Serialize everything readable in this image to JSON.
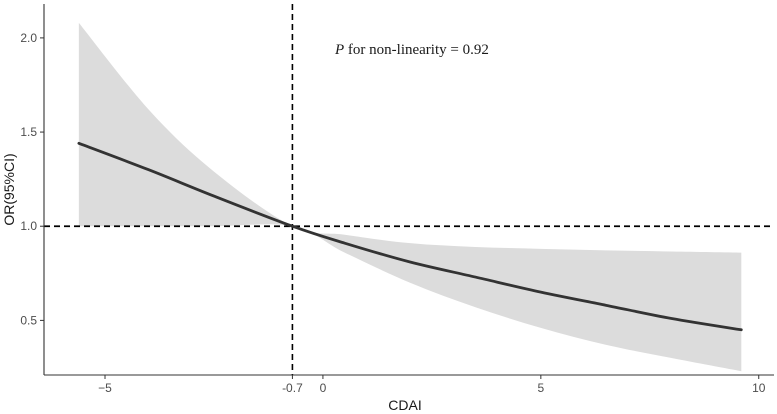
{
  "chart_data": {
    "type": "line",
    "title": "",
    "xlabel": "CDAI",
    "ylabel": "OR(95%CI)",
    "xlim": [
      -6.4,
      10.35
    ],
    "ylim": [
      0.21,
      2.18
    ],
    "x_ticks": [
      -5,
      -0.7,
      0,
      5,
      10
    ],
    "x_tick_labels": [
      "−5",
      "-0.7",
      "0",
      "5",
      "10"
    ],
    "y_ticks": [
      0.5,
      1.0,
      1.5,
      2.0
    ],
    "y_tick_labels": [
      "0.5",
      "1.0",
      "1.5",
      "2.0"
    ],
    "grid": false,
    "reference_lines": [
      {
        "orientation": "horizontal",
        "value": 1.0,
        "style": "dashed"
      },
      {
        "orientation": "vertical",
        "value": -0.7,
        "style": "dashed"
      }
    ],
    "annotation": {
      "italic": "P",
      "text": " for non-linearity = 0.92"
    },
    "series": [
      {
        "name": "OR",
        "x": [
          -5.6,
          -4,
          -2.5,
          -0.7,
          0.5,
          2,
          3.5,
          5,
          6.5,
          8,
          9.6
        ],
        "y": [
          1.44,
          1.3,
          1.16,
          1.0,
          0.91,
          0.81,
          0.73,
          0.65,
          0.58,
          0.51,
          0.45
        ]
      },
      {
        "name": "95% CI upper",
        "x": [
          -5.6,
          -4,
          -2.5,
          -0.7,
          0.5,
          2,
          3.5,
          5,
          6.5,
          8,
          9.6
        ],
        "y": [
          2.08,
          1.62,
          1.29,
          1.0,
          0.955,
          0.91,
          0.89,
          0.88,
          0.872,
          0.866,
          0.86
        ]
      },
      {
        "name": "95% CI lower",
        "x": [
          -5.6,
          -4,
          -2.5,
          -0.7,
          0.5,
          2,
          3.5,
          5,
          6.5,
          8,
          9.6
        ],
        "y": [
          1.0,
          1.0,
          1.0,
          1.0,
          0.86,
          0.7,
          0.57,
          0.46,
          0.37,
          0.3,
          0.23
        ]
      }
    ]
  },
  "colors": {
    "line": "#333333",
    "band": "#dcdcdc",
    "axis": "#333333",
    "ref": "#000000"
  }
}
